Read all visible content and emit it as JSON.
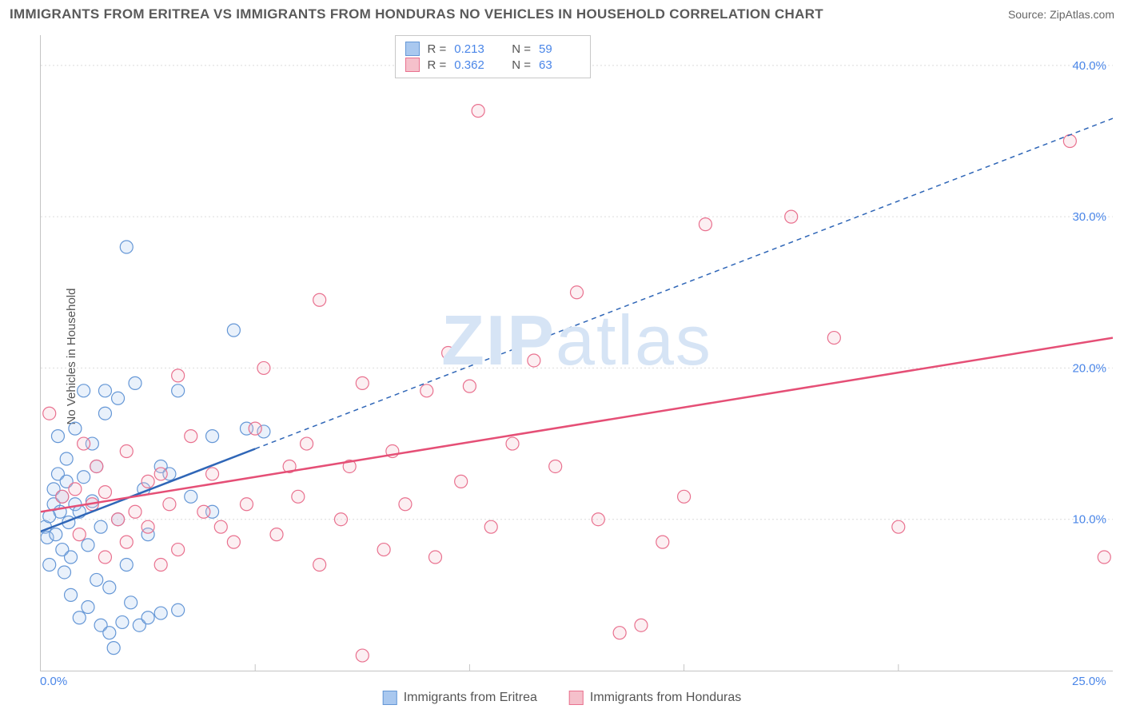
{
  "title": "IMMIGRANTS FROM ERITREA VS IMMIGRANTS FROM HONDURAS NO VEHICLES IN HOUSEHOLD CORRELATION CHART",
  "source_label": "Source:",
  "source_name": "ZipAtlas.com",
  "y_axis_label": "No Vehicles in Household",
  "watermark_bold": "ZIP",
  "watermark_thin": "atlas",
  "chart": {
    "type": "scatter",
    "xlim": [
      0,
      25
    ],
    "ylim": [
      0,
      42
    ],
    "y_ticks": [
      10,
      20,
      30,
      40
    ],
    "y_tick_labels": [
      "10.0%",
      "20.0%",
      "30.0%",
      "40.0%"
    ],
    "x_ticks": [
      0,
      5,
      10,
      15,
      20,
      25
    ],
    "x_tick_labels_shown": {
      "0": "0.0%",
      "25": "25.0%"
    },
    "background_color": "#ffffff",
    "grid_color": "#dcdcdc",
    "axis_color": "#c4c4c4",
    "tick_label_color": "#4a86e8",
    "marker_radius": 8,
    "marker_stroke_width": 1.2,
    "marker_fill_opacity": 0.25,
    "series": [
      {
        "name": "Immigrants from Eritrea",
        "color_fill": "#a9c8ef",
        "color_stroke": "#6597d6",
        "R": 0.213,
        "N": 59,
        "trend": {
          "x1": 0,
          "y1": 9.2,
          "x2": 25,
          "y2": 36.5,
          "solid_until_x": 5.0,
          "color": "#2f66b7",
          "width": 2.5,
          "dash": "6 5"
        },
        "points": [
          [
            0.1,
            9.5
          ],
          [
            0.15,
            8.8
          ],
          [
            0.2,
            10.2
          ],
          [
            0.2,
            7.0
          ],
          [
            0.3,
            12.0
          ],
          [
            0.3,
            11.0
          ],
          [
            0.35,
            9.0
          ],
          [
            0.4,
            15.5
          ],
          [
            0.4,
            13.0
          ],
          [
            0.45,
            10.5
          ],
          [
            0.5,
            8.0
          ],
          [
            0.5,
            11.5
          ],
          [
            0.55,
            6.5
          ],
          [
            0.6,
            14.0
          ],
          [
            0.6,
            12.5
          ],
          [
            0.65,
            9.8
          ],
          [
            0.7,
            7.5
          ],
          [
            0.7,
            5.0
          ],
          [
            0.8,
            11.0
          ],
          [
            0.8,
            16.0
          ],
          [
            0.9,
            10.5
          ],
          [
            0.9,
            3.5
          ],
          [
            1.0,
            18.5
          ],
          [
            1.0,
            12.8
          ],
          [
            1.1,
            8.3
          ],
          [
            1.1,
            4.2
          ],
          [
            1.2,
            15.0
          ],
          [
            1.2,
            11.2
          ],
          [
            1.3,
            6.0
          ],
          [
            1.3,
            13.5
          ],
          [
            1.4,
            3.0
          ],
          [
            1.4,
            9.5
          ],
          [
            1.5,
            17.0
          ],
          [
            1.5,
            18.5
          ],
          [
            1.6,
            5.5
          ],
          [
            1.6,
            2.5
          ],
          [
            1.7,
            1.5
          ],
          [
            1.8,
            10.0
          ],
          [
            1.8,
            18.0
          ],
          [
            1.9,
            3.2
          ],
          [
            2.0,
            28.0
          ],
          [
            2.0,
            7.0
          ],
          [
            2.1,
            4.5
          ],
          [
            2.2,
            19.0
          ],
          [
            2.3,
            3.0
          ],
          [
            2.4,
            12.0
          ],
          [
            2.5,
            3.5
          ],
          [
            2.5,
            9.0
          ],
          [
            2.8,
            3.8
          ],
          [
            2.8,
            13.5
          ],
          [
            3.0,
            13.0
          ],
          [
            3.2,
            18.5
          ],
          [
            3.2,
            4.0
          ],
          [
            3.5,
            11.5
          ],
          [
            4.0,
            15.5
          ],
          [
            4.0,
            10.5
          ],
          [
            4.5,
            22.5
          ],
          [
            4.8,
            16.0
          ],
          [
            5.2,
            15.8
          ]
        ]
      },
      {
        "name": "Immigrants from Honduras",
        "color_fill": "#f5c0cb",
        "color_stroke": "#e9718f",
        "R": 0.362,
        "N": 63,
        "trend": {
          "x1": 0,
          "y1": 10.5,
          "x2": 25,
          "y2": 22.0,
          "solid_until_x": 25,
          "color": "#e54f76",
          "width": 2.5,
          "dash": ""
        },
        "points": [
          [
            0.2,
            17.0
          ],
          [
            0.5,
            11.5
          ],
          [
            0.8,
            12.0
          ],
          [
            0.9,
            9.0
          ],
          [
            1.0,
            15.0
          ],
          [
            1.2,
            11.0
          ],
          [
            1.3,
            13.5
          ],
          [
            1.5,
            7.5
          ],
          [
            1.5,
            11.8
          ],
          [
            1.8,
            10.0
          ],
          [
            2.0,
            14.5
          ],
          [
            2.0,
            8.5
          ],
          [
            2.2,
            10.5
          ],
          [
            2.5,
            12.5
          ],
          [
            2.5,
            9.5
          ],
          [
            2.8,
            7.0
          ],
          [
            2.8,
            13.0
          ],
          [
            3.0,
            11.0
          ],
          [
            3.2,
            19.5
          ],
          [
            3.2,
            8.0
          ],
          [
            3.5,
            15.5
          ],
          [
            3.8,
            10.5
          ],
          [
            4.0,
            13.0
          ],
          [
            4.2,
            9.5
          ],
          [
            4.5,
            8.5
          ],
          [
            4.8,
            11.0
          ],
          [
            5.0,
            16.0
          ],
          [
            5.2,
            20.0
          ],
          [
            5.5,
            9.0
          ],
          [
            5.8,
            13.5
          ],
          [
            6.0,
            11.5
          ],
          [
            6.2,
            15.0
          ],
          [
            6.5,
            24.5
          ],
          [
            6.5,
            7.0
          ],
          [
            7.0,
            10.0
          ],
          [
            7.2,
            13.5
          ],
          [
            7.5,
            19.0
          ],
          [
            7.5,
            1.0
          ],
          [
            8.0,
            8.0
          ],
          [
            8.2,
            14.5
          ],
          [
            8.5,
            11.0
          ],
          [
            9.0,
            18.5
          ],
          [
            9.2,
            7.5
          ],
          [
            9.5,
            21.0
          ],
          [
            9.8,
            12.5
          ],
          [
            10.0,
            18.8
          ],
          [
            10.2,
            37.0
          ],
          [
            10.5,
            9.5
          ],
          [
            11.0,
            15.0
          ],
          [
            11.5,
            20.5
          ],
          [
            12.0,
            13.5
          ],
          [
            12.5,
            25.0
          ],
          [
            13.0,
            10.0
          ],
          [
            13.5,
            2.5
          ],
          [
            14.0,
            3.0
          ],
          [
            14.5,
            8.5
          ],
          [
            15.0,
            11.5
          ],
          [
            15.5,
            29.5
          ],
          [
            17.5,
            30.0
          ],
          [
            18.5,
            22.0
          ],
          [
            20.0,
            9.5
          ],
          [
            24.0,
            35.0
          ],
          [
            24.8,
            7.5
          ]
        ]
      }
    ]
  },
  "stat_legend": {
    "R_label": "R  =",
    "N_label": "N  ="
  },
  "bottom_legend": [
    {
      "label": "Immigrants from Eritrea",
      "fill": "#a9c8ef",
      "stroke": "#6597d6"
    },
    {
      "label": "Immigrants from Honduras",
      "fill": "#f5c0cb",
      "stroke": "#e9718f"
    }
  ]
}
